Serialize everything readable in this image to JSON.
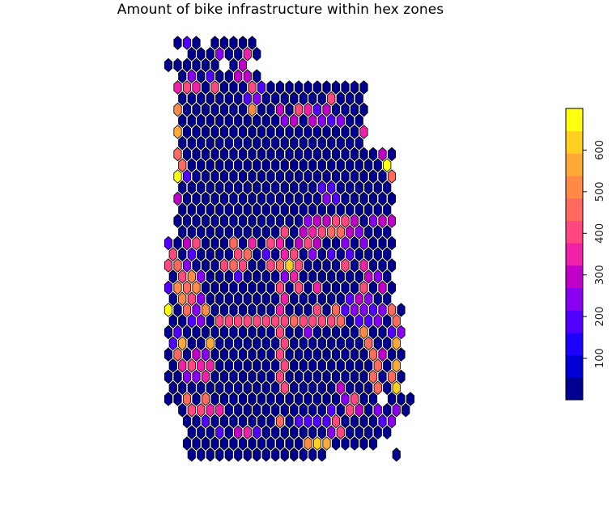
{
  "title": "Amount of bike infrastructure within hex zones",
  "legend": {
    "min": 0,
    "max": 700,
    "ticks": [
      "100",
      "200",
      "300",
      "400",
      "500",
      "600"
    ],
    "tick_values": [
      100,
      200,
      300,
      400,
      500,
      600
    ],
    "colors": [
      "#000090",
      "#0000D5",
      "#1E00FF",
      "#5200FF",
      "#8900F0",
      "#C000C8",
      "#F020A8",
      "#FF4880",
      "#FF6A60",
      "#FF8A48",
      "#FFAA38",
      "#FFD020",
      "#FFFF10"
    ]
  },
  "map": {
    "outline_color": "#000000",
    "rows_count": 38,
    "cols_count": 27,
    "shape_rows": [
      [
        0,
        1,
        9
      ],
      [
        1,
        2,
        9
      ],
      [
        2,
        0,
        8
      ],
      [
        3,
        1,
        9
      ],
      [
        4,
        1,
        21
      ],
      [
        5,
        1,
        20
      ],
      [
        6,
        1,
        21
      ],
      [
        7,
        1,
        20
      ],
      [
        8,
        1,
        21
      ],
      [
        9,
        1,
        20
      ],
      [
        10,
        1,
        24
      ],
      [
        11,
        1,
        23
      ],
      [
        12,
        1,
        24
      ],
      [
        13,
        1,
        23
      ],
      [
        14,
        1,
        24
      ],
      [
        15,
        1,
        23
      ],
      [
        16,
        1,
        24
      ],
      [
        17,
        1,
        23
      ],
      [
        18,
        0,
        24
      ],
      [
        19,
        0,
        23
      ],
      [
        20,
        0,
        24
      ],
      [
        21,
        0,
        23
      ],
      [
        22,
        0,
        24
      ],
      [
        23,
        0,
        23
      ],
      [
        24,
        0,
        25
      ],
      [
        25,
        0,
        24
      ],
      [
        26,
        0,
        25
      ],
      [
        27,
        0,
        24
      ],
      [
        28,
        0,
        25
      ],
      [
        29,
        0,
        24
      ],
      [
        30,
        0,
        25
      ],
      [
        31,
        0,
        24
      ],
      [
        32,
        0,
        26
      ],
      [
        33,
        1,
        25
      ],
      [
        34,
        2,
        24
      ],
      [
        35,
        2,
        23
      ],
      [
        36,
        2,
        22
      ],
      [
        37,
        2,
        16
      ]
    ],
    "extra_cells": [
      [
        37,
        24
      ]
    ],
    "removed_cells": [
      [
        0,
        4
      ],
      [
        2,
        6
      ],
      [
        32,
        23
      ]
    ],
    "highlights": [
      [
        0,
        2,
        3
      ],
      [
        0,
        4,
        4
      ],
      [
        1,
        5,
        4
      ],
      [
        1,
        8,
        6
      ],
      [
        2,
        6,
        7
      ],
      [
        2,
        8,
        5
      ],
      [
        3,
        2,
        4
      ],
      [
        3,
        7,
        5
      ],
      [
        3,
        8,
        5
      ],
      [
        3,
        4,
        3
      ],
      [
        4,
        1,
        6
      ],
      [
        4,
        2,
        7
      ],
      [
        4,
        3,
        6
      ],
      [
        4,
        5,
        7
      ],
      [
        4,
        9,
        7
      ],
      [
        4,
        10,
        3
      ],
      [
        5,
        8,
        3
      ],
      [
        5,
        9,
        4
      ],
      [
        5,
        17,
        7
      ],
      [
        6,
        1,
        9
      ],
      [
        6,
        9,
        9
      ],
      [
        6,
        12,
        5
      ],
      [
        6,
        14,
        7
      ],
      [
        6,
        15,
        6
      ],
      [
        6,
        17,
        5
      ],
      [
        6,
        16,
        3
      ],
      [
        7,
        12,
        4
      ],
      [
        7,
        13,
        5
      ],
      [
        7,
        15,
        5
      ],
      [
        7,
        16,
        4
      ],
      [
        7,
        17,
        3
      ],
      [
        7,
        18,
        4
      ],
      [
        8,
        1,
        10
      ],
      [
        8,
        21,
        6
      ],
      [
        8,
        22,
        7
      ],
      [
        9,
        22,
        6
      ],
      [
        10,
        1,
        8
      ],
      [
        10,
        23,
        5
      ],
      [
        11,
        1,
        8
      ],
      [
        11,
        23,
        12
      ],
      [
        12,
        1,
        12
      ],
      [
        12,
        2,
        3
      ],
      [
        12,
        24,
        8
      ],
      [
        12,
        25,
        8
      ],
      [
        12,
        26,
        7
      ],
      [
        13,
        16,
        3
      ],
      [
        13,
        17,
        3
      ],
      [
        14,
        1,
        5
      ],
      [
        14,
        17,
        4
      ],
      [
        14,
        18,
        3
      ],
      [
        16,
        15,
        4
      ],
      [
        16,
        16,
        5
      ],
      [
        16,
        17,
        5
      ],
      [
        16,
        18,
        7
      ],
      [
        16,
        19,
        7
      ],
      [
        16,
        20,
        5
      ],
      [
        16,
        22,
        4
      ],
      [
        16,
        23,
        5
      ],
      [
        16,
        24,
        5
      ],
      [
        17,
        12,
        7
      ],
      [
        17,
        14,
        5
      ],
      [
        17,
        15,
        6
      ],
      [
        17,
        16,
        7
      ],
      [
        17,
        17,
        8
      ],
      [
        17,
        18,
        8
      ],
      [
        17,
        19,
        5
      ],
      [
        17,
        20,
        4
      ],
      [
        18,
        0,
        3
      ],
      [
        18,
        2,
        5
      ],
      [
        18,
        3,
        7
      ],
      [
        18,
        7,
        8
      ],
      [
        18,
        9,
        6
      ],
      [
        18,
        11,
        7
      ],
      [
        18,
        12,
        6
      ],
      [
        18,
        14,
        5
      ],
      [
        18,
        15,
        7
      ],
      [
        18,
        16,
        5
      ],
      [
        18,
        19,
        4
      ],
      [
        18,
        21,
        4
      ],
      [
        19,
        0,
        7
      ],
      [
        19,
        2,
        3
      ],
      [
        19,
        7,
        7
      ],
      [
        19,
        8,
        8
      ],
      [
        19,
        10,
        3
      ],
      [
        19,
        12,
        6
      ],
      [
        19,
        13,
        7
      ],
      [
        19,
        15,
        4
      ],
      [
        19,
        17,
        3
      ],
      [
        19,
        19,
        3
      ],
      [
        20,
        0,
        7
      ],
      [
        20,
        1,
        8
      ],
      [
        20,
        2,
        4
      ],
      [
        20,
        6,
        7
      ],
      [
        20,
        7,
        8
      ],
      [
        20,
        8,
        7
      ],
      [
        20,
        11,
        7
      ],
      [
        20,
        12,
        8
      ],
      [
        20,
        13,
        11
      ],
      [
        20,
        14,
        7
      ],
      [
        20,
        19,
        7
      ],
      [
        20,
        21,
        6
      ],
      [
        21,
        1,
        7
      ],
      [
        21,
        2,
        9
      ],
      [
        21,
        3,
        4
      ],
      [
        21,
        7,
        3
      ],
      [
        21,
        12,
        4
      ],
      [
        21,
        13,
        6
      ],
      [
        21,
        21,
        5
      ],
      [
        21,
        22,
        4
      ],
      [
        22,
        0,
        3
      ],
      [
        22,
        1,
        9
      ],
      [
        22,
        2,
        8
      ],
      [
        22,
        3,
        9
      ],
      [
        22,
        12,
        7
      ],
      [
        22,
        14,
        7
      ],
      [
        22,
        16,
        6
      ],
      [
        22,
        21,
        7
      ],
      [
        22,
        23,
        5
      ],
      [
        23,
        1,
        9
      ],
      [
        23,
        2,
        7
      ],
      [
        23,
        3,
        4
      ],
      [
        23,
        12,
        6
      ],
      [
        23,
        19,
        3
      ],
      [
        23,
        20,
        5
      ],
      [
        23,
        21,
        4
      ],
      [
        24,
        0,
        12
      ],
      [
        24,
        2,
        8
      ],
      [
        24,
        3,
        4
      ],
      [
        24,
        4,
        9
      ],
      [
        24,
        12,
        6
      ],
      [
        24,
        16,
        7
      ],
      [
        24,
        18,
        8
      ],
      [
        24,
        19,
        3
      ],
      [
        24,
        20,
        4
      ],
      [
        24,
        21,
        4
      ],
      [
        24,
        22,
        3
      ],
      [
        24,
        23,
        4
      ],
      [
        24,
        24,
        8
      ],
      [
        25,
        2,
        3
      ],
      [
        25,
        3,
        4
      ],
      [
        25,
        5,
        7
      ],
      [
        25,
        6,
        7
      ],
      [
        25,
        7,
        7
      ],
      [
        25,
        8,
        7
      ],
      [
        25,
        9,
        7
      ],
      [
        25,
        10,
        7
      ],
      [
        25,
        11,
        7
      ],
      [
        25,
        12,
        7
      ],
      [
        25,
        13,
        8
      ],
      [
        25,
        14,
        7
      ],
      [
        25,
        15,
        7
      ],
      [
        25,
        16,
        7
      ],
      [
        25,
        17,
        7
      ],
      [
        25,
        18,
        8
      ],
      [
        25,
        20,
        3
      ],
      [
        25,
        21,
        3
      ],
      [
        25,
        22,
        4
      ],
      [
        25,
        24,
        8
      ],
      [
        26,
        1,
        3
      ],
      [
        26,
        12,
        7
      ],
      [
        26,
        15,
        4
      ],
      [
        26,
        21,
        9
      ],
      [
        26,
        24,
        3
      ],
      [
        26,
        25,
        4
      ],
      [
        27,
        0,
        3
      ],
      [
        27,
        1,
        10
      ],
      [
        27,
        4,
        10
      ],
      [
        27,
        12,
        7
      ],
      [
        27,
        21,
        8
      ],
      [
        27,
        24,
        10
      ],
      [
        28,
        1,
        8
      ],
      [
        28,
        3,
        5
      ],
      [
        28,
        4,
        4
      ],
      [
        28,
        12,
        7
      ],
      [
        28,
        22,
        8
      ],
      [
        28,
        23,
        5
      ],
      [
        29,
        1,
        6
      ],
      [
        29,
        2,
        7
      ],
      [
        29,
        3,
        6
      ],
      [
        29,
        4,
        6
      ],
      [
        29,
        12,
        7
      ],
      [
        29,
        22,
        8
      ],
      [
        29,
        24,
        10
      ],
      [
        30,
        2,
        4
      ],
      [
        30,
        3,
        4
      ],
      [
        30,
        4,
        6
      ],
      [
        30,
        12,
        7
      ],
      [
        30,
        22,
        8
      ],
      [
        30,
        24,
        8
      ],
      [
        31,
        12,
        7
      ],
      [
        31,
        18,
        5
      ],
      [
        31,
        22,
        8
      ],
      [
        31,
        24,
        11
      ],
      [
        32,
        2,
        8
      ],
      [
        32,
        4,
        8
      ],
      [
        32,
        19,
        4
      ],
      [
        32,
        20,
        7
      ],
      [
        32,
        23,
        4
      ],
      [
        33,
        2,
        7
      ],
      [
        33,
        3,
        7
      ],
      [
        33,
        4,
        6
      ],
      [
        33,
        5,
        6
      ],
      [
        33,
        17,
        3
      ],
      [
        33,
        19,
        7
      ],
      [
        33,
        20,
        5
      ],
      [
        33,
        22,
        4
      ],
      [
        33,
        24,
        4
      ],
      [
        34,
        4,
        3
      ],
      [
        34,
        12,
        8
      ],
      [
        34,
        14,
        3
      ],
      [
        34,
        15,
        3
      ],
      [
        34,
        16,
        3
      ],
      [
        34,
        17,
        3
      ],
      [
        34,
        18,
        7
      ],
      [
        34,
        23,
        3
      ],
      [
        34,
        24,
        4
      ],
      [
        35,
        5,
        3
      ],
      [
        35,
        7,
        5
      ],
      [
        35,
        8,
        6
      ],
      [
        35,
        9,
        3
      ],
      [
        35,
        17,
        4
      ],
      [
        35,
        18,
        7
      ],
      [
        35,
        24,
        8
      ],
      [
        35,
        25,
        7
      ],
      [
        36,
        15,
        9
      ],
      [
        36,
        16,
        11
      ],
      [
        36,
        17,
        10
      ],
      [
        36,
        24,
        4
      ],
      [
        36,
        25,
        3
      ],
      [
        36,
        26,
        4
      ]
    ]
  }
}
